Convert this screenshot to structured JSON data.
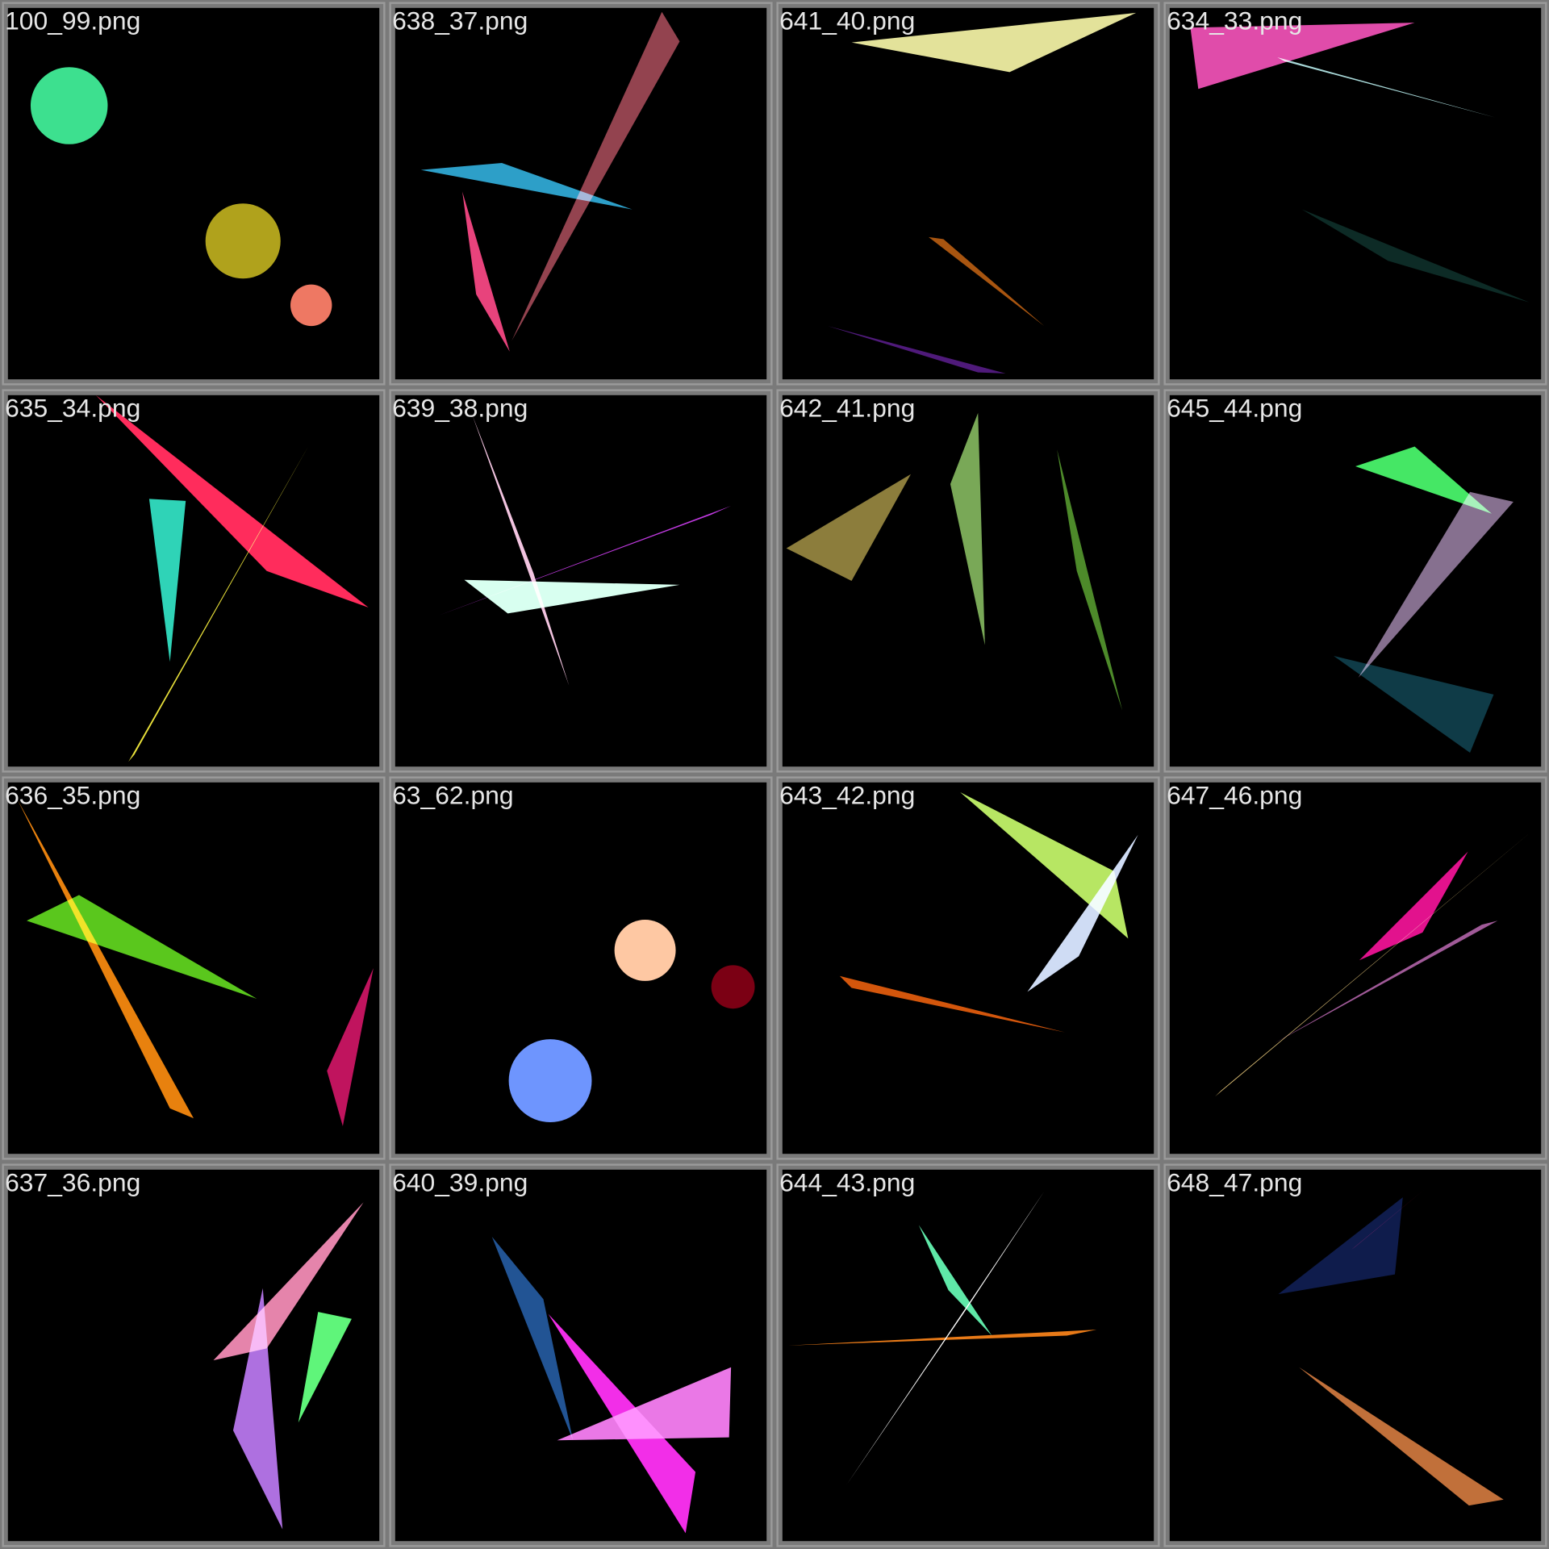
{
  "tiles": [
    "100_99.png",
    "638_37.png",
    "641_40.png",
    "634_33.png",
    "635_34.png",
    "639_38.png",
    "642_41.png",
    "645_44.png",
    "636_35.png",
    "63_62.png",
    "643_42.png",
    "647_46.png",
    "637_36.png",
    "640_39.png",
    "644_43.png",
    "648_47.png"
  ]
}
